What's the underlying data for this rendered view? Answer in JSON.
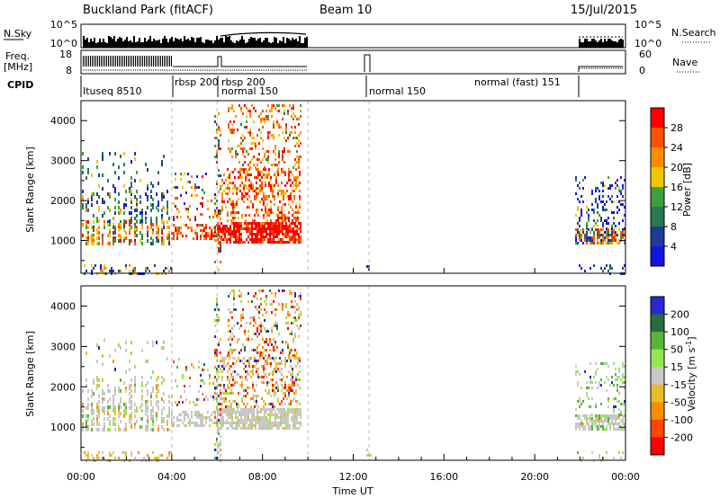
{
  "header": {
    "title": "Buckland Park (fitACF)",
    "beam": "Beam 10",
    "date": "15/Jul/2015"
  },
  "strips": {
    "nsky_label": "N.Sky",
    "nsky_ticks": [
      "10^5",
      "10^0"
    ],
    "nsearch_label": "N.Search",
    "nsearch_ticks": [
      "10^5",
      "10^0"
    ],
    "freq_label_line1": "Freq.",
    "freq_label_line2": "[MHz]",
    "freq_ticks": [
      "18",
      "8"
    ],
    "nave_label": "Nave",
    "nave_ticks": [
      "60",
      "0"
    ],
    "cpid_label": "CPID"
  },
  "cpid_segments": [
    {
      "label": "Ituseq 8510",
      "start_hour": 0.0
    },
    {
      "label": "rbsp 200",
      "start_hour": 4.0
    },
    {
      "label": "rbsp 200",
      "start_hour": 5.9
    },
    {
      "label": "normal 150",
      "start_hour": 6.1
    },
    {
      "label": "normal 150",
      "start_hour": 12.7
    },
    {
      "label": "normal (fast) 151",
      "start_hour": 21.8
    }
  ],
  "colors": {
    "power": [
      "#1414e0",
      "#1e3c96",
      "#287850",
      "#3ca03c",
      "#f0c800",
      "#ff8c00",
      "#ff5000",
      "#ff0000"
    ],
    "velocity": [
      "#2828d0",
      "#286e3c",
      "#5ab43c",
      "#96e650",
      "#c8c8c8",
      "#e6be28",
      "#ff8c00",
      "#ff4600",
      "#ff0000"
    ],
    "gray_line": "#b0b0b0"
  },
  "chart_data": [
    {
      "type": "heatmap",
      "name": "power",
      "ylabel": "Slant Range [km]",
      "ylim": [
        180,
        4500
      ],
      "yticks": [
        1000,
        2000,
        3000,
        4000
      ],
      "xlim": [
        0,
        24
      ],
      "xticks": [
        "00:00",
        "04:00",
        "08:00",
        "12:00",
        "16:00",
        "20:00",
        "00:00"
      ],
      "colorbar": {
        "label": "Power [dB]",
        "range": [
          0,
          32
        ],
        "ticks": [
          4,
          8,
          12,
          16,
          20,
          24,
          28
        ]
      }
    },
    {
      "type": "heatmap",
      "name": "velocity",
      "ylabel": "Slant Range [km]",
      "xlabel": "Time UT",
      "ylim": [
        180,
        4500
      ],
      "yticks": [
        1000,
        2000,
        3000,
        4000
      ],
      "xlim": [
        0,
        24
      ],
      "xticks": [
        "00:00",
        "04:00",
        "08:00",
        "12:00",
        "16:00",
        "20:00",
        "00:00"
      ],
      "colorbar": {
        "label": "Velocity [m s-1]",
        "ticks": [
          "200",
          "100",
          "50",
          "15",
          "-15",
          "-50",
          "-100",
          "-200"
        ]
      }
    }
  ]
}
